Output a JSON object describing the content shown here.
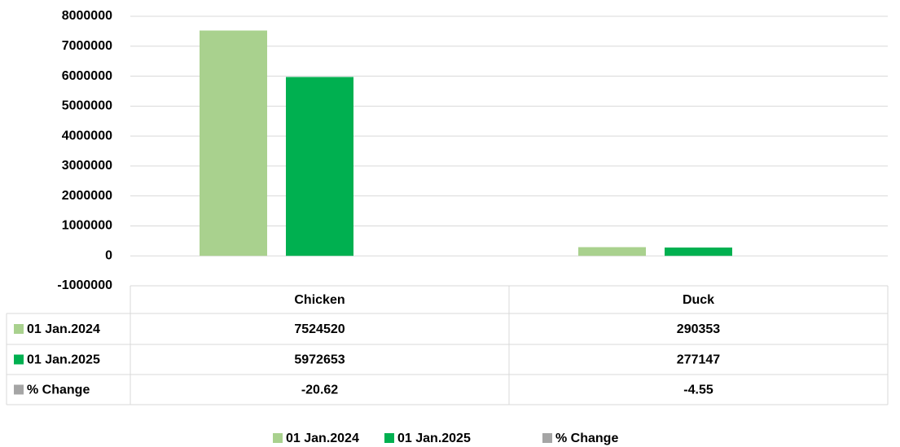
{
  "chart_data": {
    "type": "bar",
    "categories": [
      "Chicken",
      "Duck"
    ],
    "series": [
      {
        "name": "01 Jan.2024",
        "color": "#a9d18e",
        "values": [
          7524520,
          290353
        ]
      },
      {
        "name": "01 Jan.2025",
        "color": "#00b050",
        "values": [
          5972653,
          277147
        ]
      },
      {
        "name": "% Change",
        "color": "#a5a5a5",
        "values": [
          -20.62,
          -4.55
        ]
      }
    ],
    "ylim": [
      -1000000,
      8000000
    ],
    "yticks": [
      -1000000,
      0,
      1000000,
      2000000,
      3000000,
      4000000,
      5000000,
      6000000,
      7000000,
      8000000
    ],
    "grid": true,
    "data_table": true,
    "legend": "bottom"
  }
}
